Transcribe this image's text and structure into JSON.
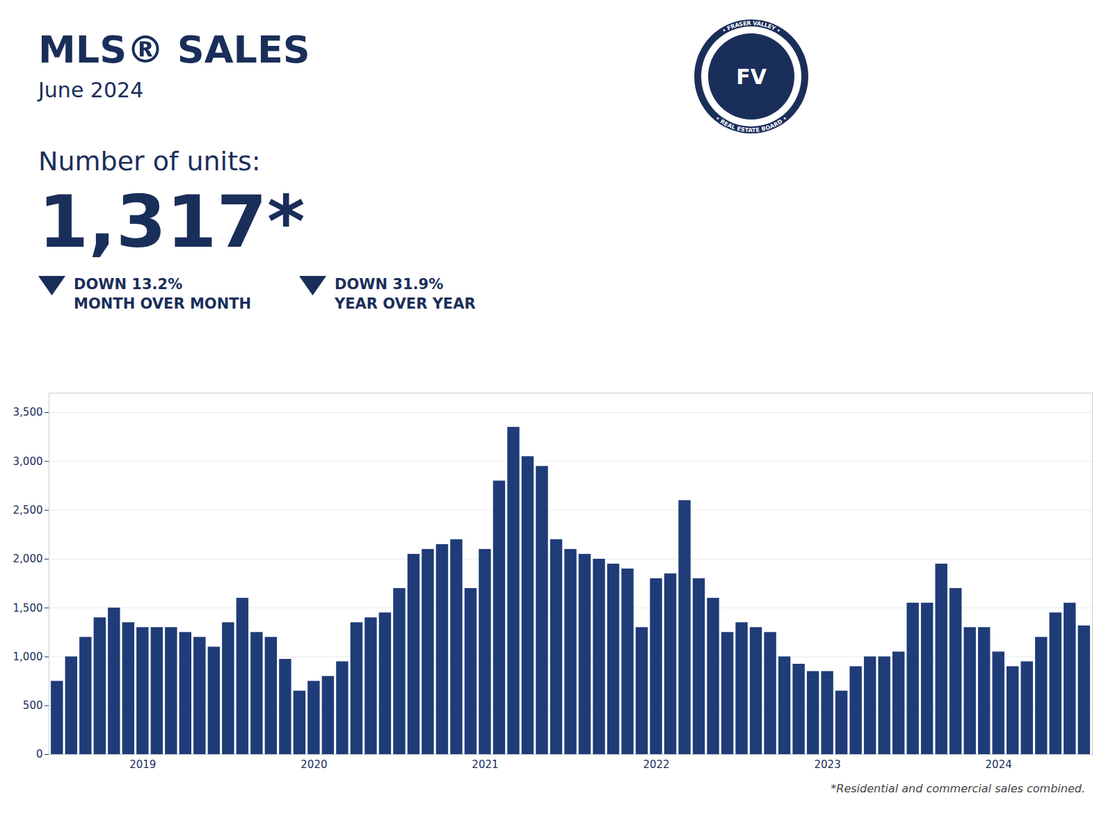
{
  "chart_data": {
    "type": "bar",
    "title": "MLS® SALES",
    "subtitle": "June 2024",
    "annotations": [
      "Number of units:",
      "1,317*",
      "DOWN 13.2%",
      "MONTH OVER MONTH",
      "DOWN 31.9%",
      "YEAR OVER YEAR",
      "*Residential and commercial sales combined.",
      "FV",
      "• FRASER VALLEY •",
      "• REAL ESTATE BOARD •"
    ],
    "categories": [
      null,
      null,
      null,
      null,
      null,
      null,
      "2019",
      null,
      null,
      null,
      null,
      null,
      null,
      null,
      null,
      null,
      null,
      null,
      "2020",
      null,
      null,
      null,
      null,
      null,
      null,
      null,
      null,
      null,
      null,
      null,
      "2021",
      null,
      null,
      null,
      null,
      null,
      null,
      null,
      null,
      null,
      null,
      null,
      "2022",
      null,
      null,
      null,
      null,
      null,
      null,
      null,
      null,
      null,
      null,
      null,
      "2023",
      null,
      null,
      null,
      null,
      null,
      null,
      null,
      null,
      null,
      null,
      null,
      "2024",
      null,
      null,
      null,
      null,
      null,
      null
    ],
    "values": [
      750,
      1000,
      1200,
      1400,
      1500,
      1350,
      1300,
      1300,
      1300,
      1250,
      1200,
      1100,
      1350,
      1600,
      1250,
      1200,
      975,
      650,
      750,
      800,
      950,
      1350,
      1400,
      1450,
      1700,
      2050,
      2100,
      2150,
      2200,
      1700,
      2100,
      2800,
      3350,
      3050,
      2950,
      2200,
      2100,
      2050,
      2000,
      1950,
      1900,
      1300,
      1800,
      1850,
      2600,
      1800,
      1600,
      1250,
      1350,
      1300,
      1250,
      1000,
      925,
      850,
      850,
      650,
      900,
      1000,
      1000,
      1050,
      1550,
      1550,
      1950,
      1700,
      1300,
      1300,
      1050,
      900,
      950,
      1200,
      1450,
      1550,
      1317
    ],
    "color": "#1F3C78",
    "ylim": [
      0,
      3700
    ],
    "yticks": [
      0,
      500,
      {
        "value": 1000,
        "label": "1,000"
      },
      {
        "value": 1500,
        "label": "1,500"
      },
      {
        "value": 2000,
        "label": "2,000"
      },
      {
        "value": 2500,
        "label": "2,500"
      },
      {
        "value": 3000,
        "label": "3,000"
      },
      {
        "value": 3500,
        "label": "3,500"
      }
    ],
    "grid": true
  }
}
